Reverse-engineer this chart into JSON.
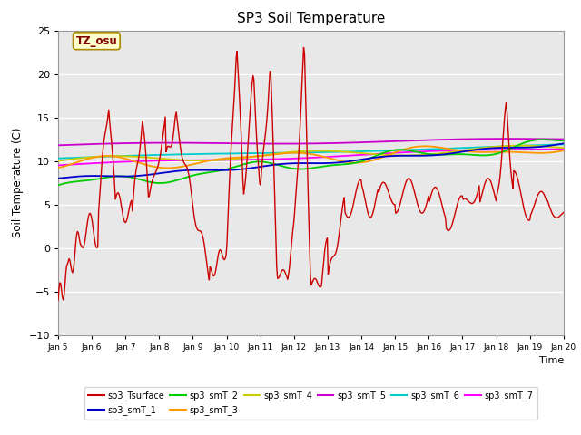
{
  "title": "SP3 Soil Temperature",
  "xlabel": "Time",
  "ylabel": "Soil Temperature (C)",
  "ylim": [
    -10,
    25
  ],
  "xlim": [
    0,
    15
  ],
  "x_tick_labels": [
    "Jan 5",
    "Jan 6",
    "Jan 7",
    "Jan 8",
    "Jan 9",
    "Jan 10",
    "Jan 11",
    "Jan 12",
    "Jan 13",
    "Jan 14",
    "Jan 15",
    "Jan 16",
    "Jan 17",
    "Jan 18",
    "Jan 19",
    "Jan 20"
  ],
  "tz_label": "TZ_osu",
  "plot_bg": "#e8e8e8",
  "fig_bg": "#ffffff",
  "grid_color": "#ffffff",
  "series_colors": {
    "sp3_Tsurface": "#cc0000",
    "sp3_smT_1": "#0000cc",
    "sp3_smT_2": "#00cc00",
    "sp3_smT_3": "#ff9900",
    "sp3_smT_4": "#cccc00",
    "sp3_smT_5": "#cc00cc",
    "sp3_smT_6": "#00cccc",
    "sp3_smT_7": "#ff00ff"
  }
}
